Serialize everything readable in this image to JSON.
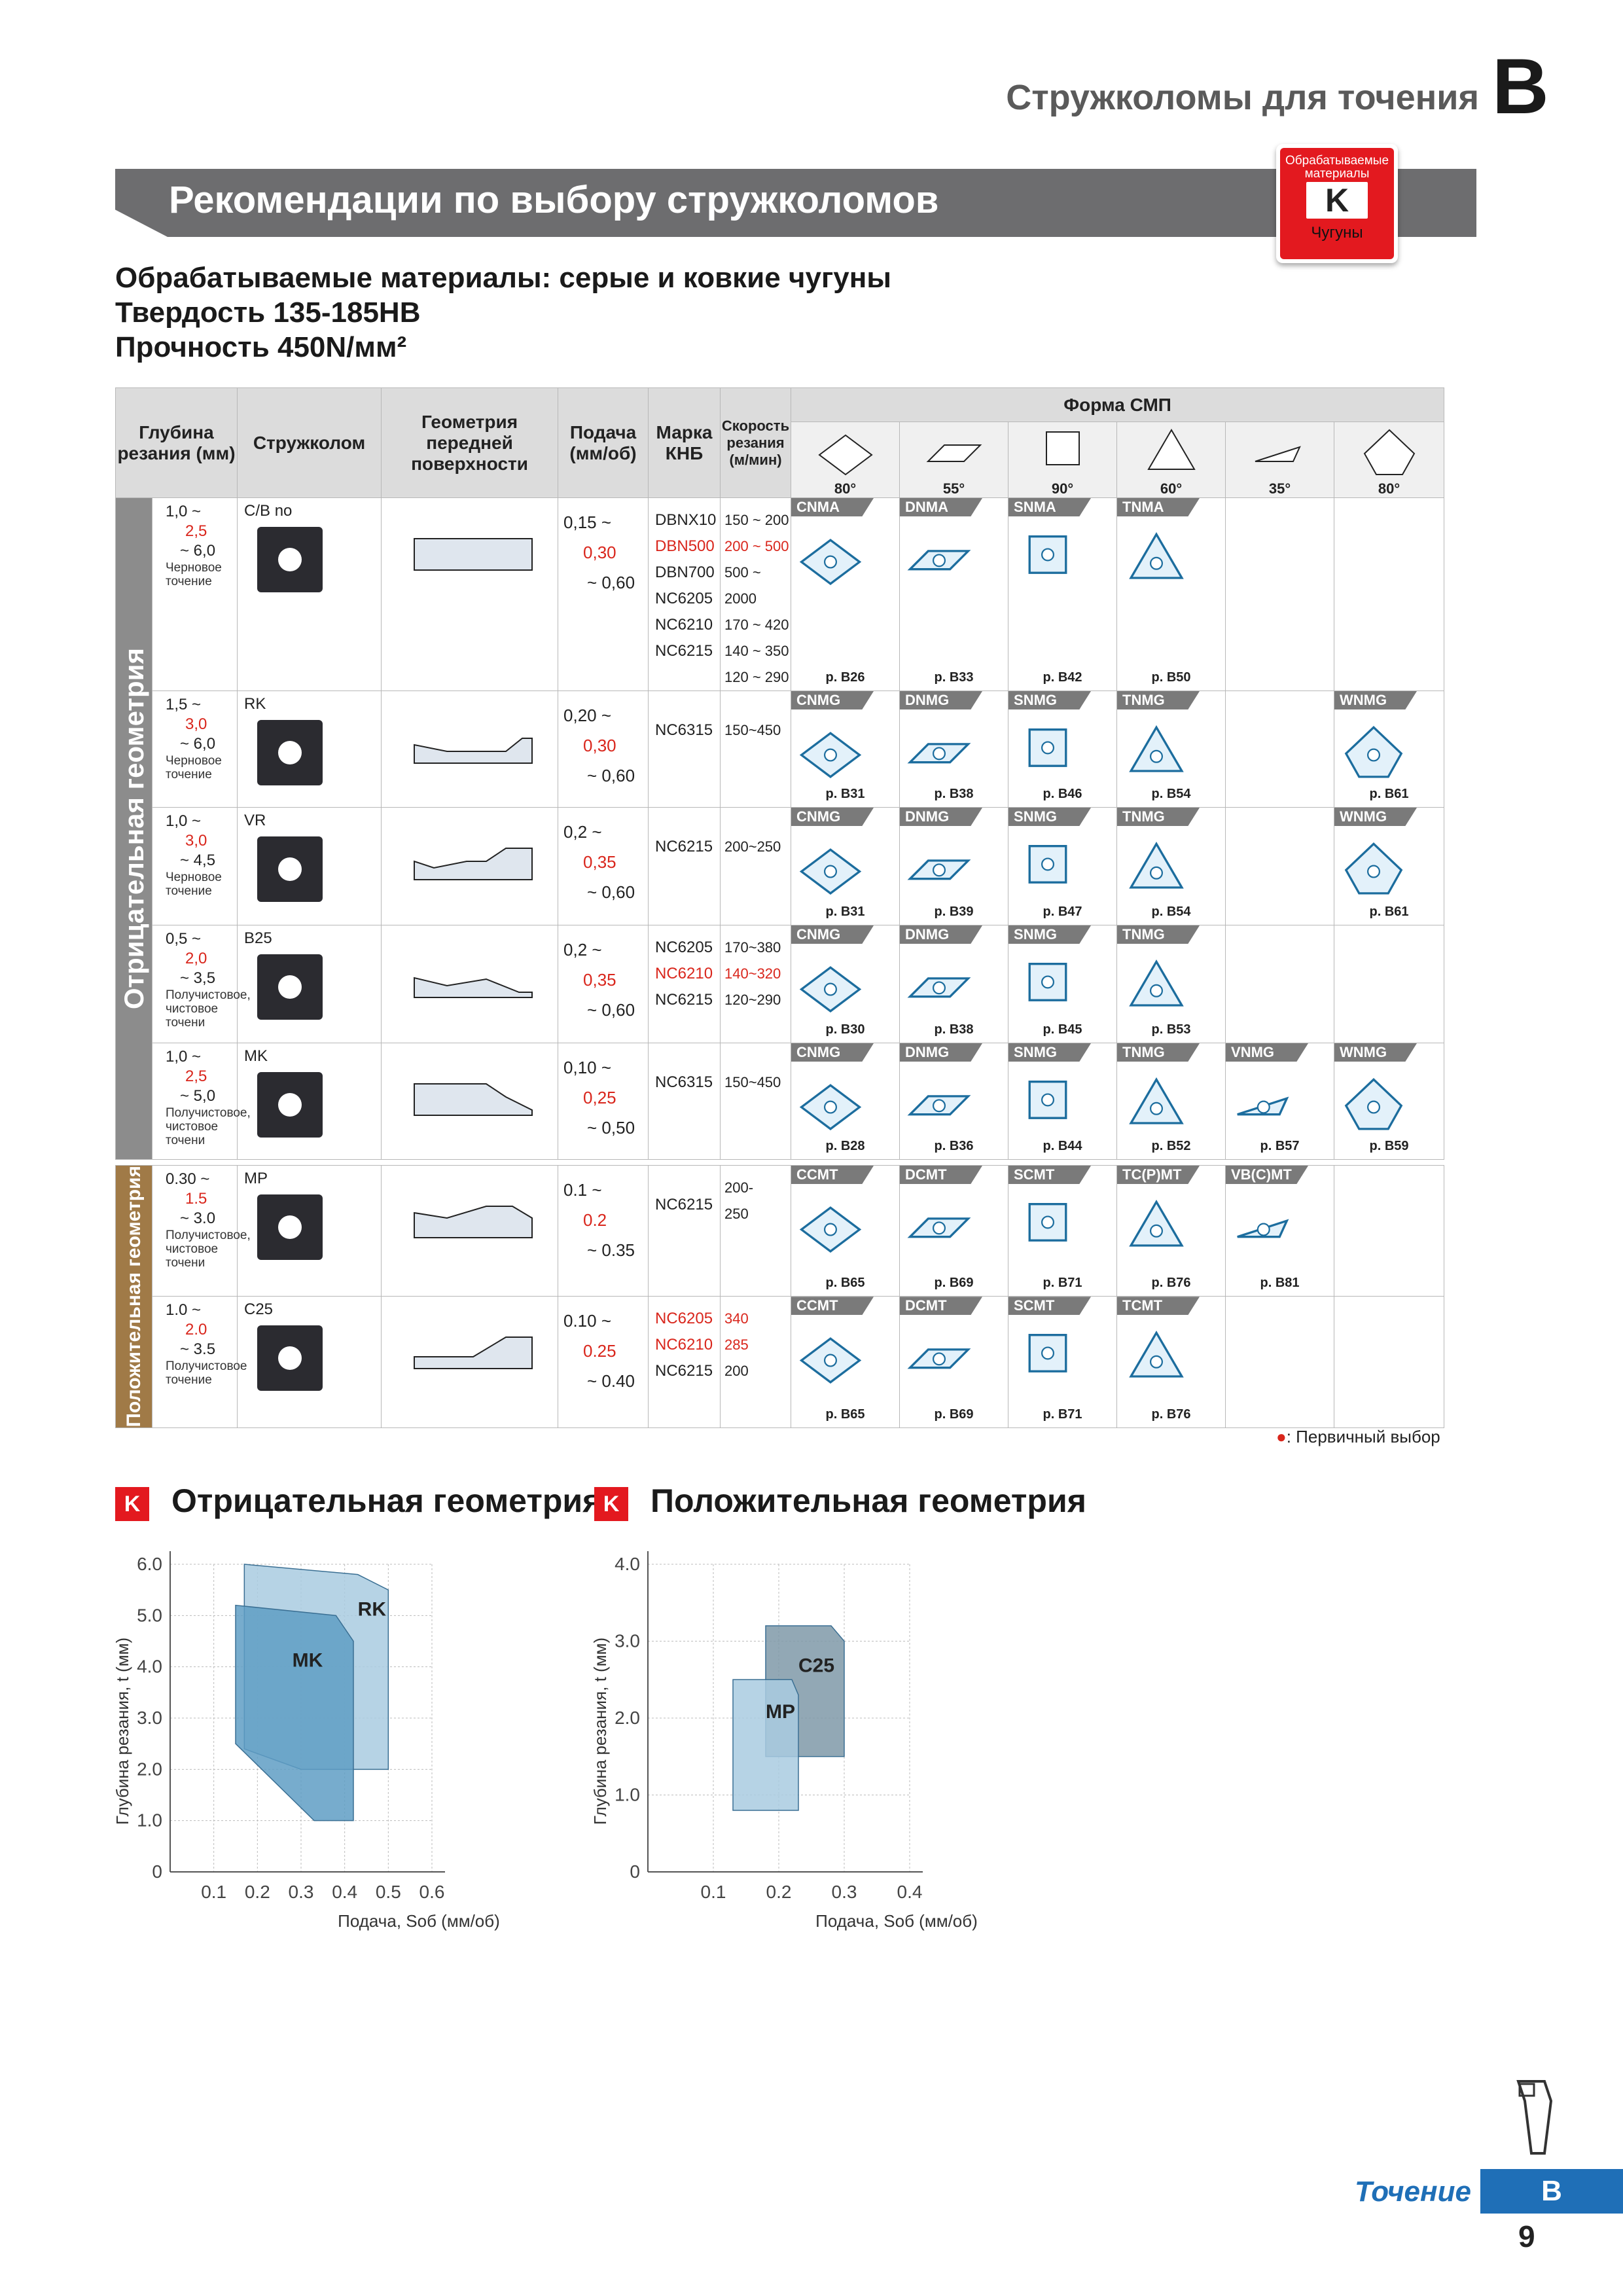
{
  "header": {
    "section_title": "Стружколомы для точения",
    "section_letter": "B"
  },
  "band_title": "Рекомендации по выбору стружколомов",
  "badge": {
    "top": "Обрабатываемые материалы",
    "letter": "K",
    "bottom": "Чугуны"
  },
  "intro": {
    "line1": "Обрабатываемые материалы: серые и ковкие чугуны",
    "line2": "Твердость 135-185HB",
    "line3": "Прочность 450N/мм²"
  },
  "table": {
    "headers": {
      "depth": "Глубина резания (мм)",
      "breaker": "Стружколом",
      "geometry": "Геометрия передней поверхности",
      "feed": "Подача (мм/об)",
      "grade": "Марка КНБ",
      "speed": "Скорость резания (м/мин)",
      "form": "Форма СМП",
      "angles": [
        "80°",
        "55°",
        "90°",
        "60°",
        "35°",
        "80°"
      ]
    },
    "side_negative": "Отрицательная геометрия",
    "side_positive": "Положительная геометрия",
    "rows": [
      {
        "depth_a": "1,0 ~",
        "depth_b": "2,5",
        "depth_c": "~ 6,0",
        "note": "Черновое точение",
        "breaker": "C/B no",
        "feed_a": "0,15 ~",
        "feed_b": "0,30",
        "feed_c": "~ 0,60",
        "grades": [
          "DBNX10",
          "DBN500",
          "DBN700",
          "NC6205",
          "NC6210",
          "NC6215"
        ],
        "speeds": [
          "150 ~ 200",
          "200 ~ 500",
          "500 ~ 2000",
          "170 ~ 420",
          "140 ~ 350",
          "120 ~ 290"
        ],
        "shapes": [
          {
            "tag": "CNMA",
            "ref": "p. B26"
          },
          {
            "tag": "DNMA",
            "ref": "p. B33"
          },
          {
            "tag": "SNMA",
            "ref": "p. B42"
          },
          {
            "tag": "TNMA",
            "ref": "p. B50"
          },
          {
            "tag": "",
            "ref": ""
          },
          {
            "tag": "",
            "ref": ""
          }
        ]
      },
      {
        "depth_a": "1,5 ~",
        "depth_b": "3,0",
        "depth_c": "~ 6,0",
        "note": "Черновое точение",
        "breaker": "RK",
        "feed_a": "0,20 ~",
        "feed_b": "0,30",
        "feed_c": "~ 0,60",
        "grades": [
          "NC6315"
        ],
        "speeds": [
          "150~450"
        ],
        "shapes": [
          {
            "tag": "CNMG",
            "ref": "p. B31"
          },
          {
            "tag": "DNMG",
            "ref": "p. B38"
          },
          {
            "tag": "SNMG",
            "ref": "p. B46"
          },
          {
            "tag": "TNMG",
            "ref": "p. B54"
          },
          {
            "tag": "",
            "ref": ""
          },
          {
            "tag": "WNMG",
            "ref": "p. B61"
          }
        ]
      },
      {
        "depth_a": "1,0 ~",
        "depth_b": "3,0",
        "depth_c": "~ 4,5",
        "note": "Черновое точение",
        "breaker": "VR",
        "feed_a": "0,2 ~",
        "feed_b": "0,35",
        "feed_c": "~ 0,60",
        "grades": [
          "NC6215"
        ],
        "speeds": [
          "200~250"
        ],
        "shapes": [
          {
            "tag": "CNMG",
            "ref": "p. B31"
          },
          {
            "tag": "DNMG",
            "ref": "p. B39"
          },
          {
            "tag": "SNMG",
            "ref": "p. B47"
          },
          {
            "tag": "TNMG",
            "ref": "p. B54"
          },
          {
            "tag": "",
            "ref": ""
          },
          {
            "tag": "WNMG",
            "ref": "p. B61"
          }
        ]
      },
      {
        "depth_a": "0,5 ~",
        "depth_b": "2,0",
        "depth_c": "~ 3,5",
        "note": "Получистовое, чистовое точени",
        "breaker": "B25",
        "feed_a": "0,2 ~",
        "feed_b": "0,35",
        "feed_c": "~ 0,60",
        "grades": [
          "NC6205",
          "NC6210",
          "NC6215"
        ],
        "speeds": [
          "170~380",
          "140~320",
          "120~290"
        ],
        "shapes": [
          {
            "tag": "CNMG",
            "ref": "p. B30"
          },
          {
            "tag": "DNMG",
            "ref": "p. B38"
          },
          {
            "tag": "SNMG",
            "ref": "p. B45"
          },
          {
            "tag": "TNMG",
            "ref": "p. B53"
          },
          {
            "tag": "",
            "ref": ""
          },
          {
            "tag": "",
            "ref": ""
          }
        ]
      },
      {
        "depth_a": "1,0 ~",
        "depth_b": "2,5",
        "depth_c": "~ 5,0",
        "note": "Получистовое, чистовое точени",
        "breaker": "MK",
        "feed_a": "0,10 ~",
        "feed_b": "0,25",
        "feed_c": "~ 0,50",
        "grades": [
          "NC6315"
        ],
        "speeds": [
          "150~450"
        ],
        "shapes": [
          {
            "tag": "CNMG",
            "ref": "p. B28"
          },
          {
            "tag": "DNMG",
            "ref": "p. B36"
          },
          {
            "tag": "SNMG",
            "ref": "p. B44"
          },
          {
            "tag": "TNMG",
            "ref": "p. B52"
          },
          {
            "tag": "VNMG",
            "ref": "p. B57"
          },
          {
            "tag": "WNMG",
            "ref": "p. B59"
          }
        ]
      }
    ],
    "rows_pos": [
      {
        "depth_a": "0.30 ~",
        "depth_b": "1.5",
        "depth_c": "~ 3.0",
        "note": "Получистовое, чистовое точени",
        "breaker": "MP",
        "feed_a": "0.1 ~",
        "feed_b": "0.2",
        "feed_c": "~ 0.35",
        "grades": [
          "NC6215"
        ],
        "speeds": [
          "200-",
          "250"
        ],
        "shapes": [
          {
            "tag": "CCMT",
            "ref": "p. B65"
          },
          {
            "tag": "DCMT",
            "ref": "p. B69"
          },
          {
            "tag": "SCMT",
            "ref": "p. B71"
          },
          {
            "tag": "TC(P)MT",
            "ref": "p. B76"
          },
          {
            "tag": "VB(C)MT",
            "ref": "p. B81"
          },
          {
            "tag": "",
            "ref": ""
          }
        ]
      },
      {
        "depth_a": "1.0 ~",
        "depth_b": "2.0",
        "depth_c": "~ 3.5",
        "note": "Получистовое точение",
        "breaker": "C25",
        "feed_a": "0.10 ~",
        "feed_b": "0.25",
        "feed_c": "~ 0.40",
        "grades": [
          "NC6205",
          "NC6210",
          "NC6215"
        ],
        "speeds": [
          "340",
          "285",
          "200"
        ],
        "shapes": [
          {
            "tag": "CCMT",
            "ref": "p. B65"
          },
          {
            "tag": "DCMT",
            "ref": "p. B69"
          },
          {
            "tag": "SCMT",
            "ref": "p. B71"
          },
          {
            "tag": "TCMT",
            "ref": "p. B76"
          },
          {
            "tag": "",
            "ref": ""
          },
          {
            "tag": "",
            "ref": ""
          }
        ]
      }
    ]
  },
  "legend": ": Первичный выбор",
  "chart_sections": {
    "neg_title": "Отрицательная геометрия",
    "pos_title": "Положительная геометрия",
    "k": "K"
  },
  "chart_data": [
    {
      "type": "area",
      "xlabel": "Подача, Sоб (мм/об)",
      "ylabel": "Глубина резания, t (мм)",
      "x_ticks": [
        "0.1",
        "0.2",
        "0.3",
        "0.4",
        "0.5",
        "0.6"
      ],
      "y_ticks": [
        "0",
        "1.0",
        "2.0",
        "3.0",
        "4.0",
        "5.0",
        "6.0"
      ],
      "xlim": [
        0,
        0.6
      ],
      "ylim": [
        0,
        6.0
      ],
      "series": [
        {
          "name": "RK",
          "color": "#a9cbe0"
        },
        {
          "name": "MK",
          "color": "#5f9dc4"
        }
      ]
    },
    {
      "type": "area",
      "xlabel": "Подача, Sоб (мм/об)",
      "ylabel": "Глубина резания, t (мм)",
      "x_ticks": [
        "0.1",
        "0.2",
        "0.3",
        "0.4"
      ],
      "y_ticks": [
        "0",
        "1.0",
        "2.0",
        "3.0",
        "4.0"
      ],
      "xlim": [
        0,
        0.4
      ],
      "ylim": [
        0,
        4.0
      ],
      "series": [
        {
          "name": "C25",
          "color": "#7f99a8"
        },
        {
          "name": "MP",
          "color": "#a9cbe0"
        }
      ]
    }
  ],
  "footer": {
    "word": "Точение",
    "letter": "B",
    "page": "9"
  }
}
